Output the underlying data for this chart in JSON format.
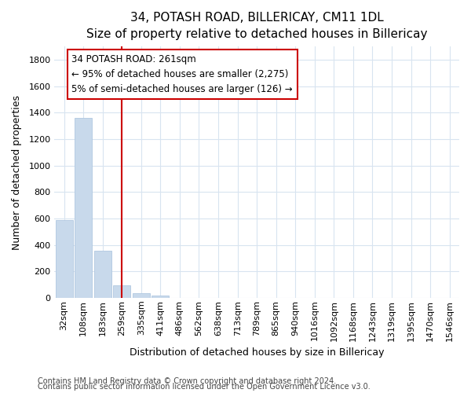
{
  "title": "34, POTASH ROAD, BILLERICAY, CM11 1DL",
  "subtitle": "Size of property relative to detached houses in Billericay",
  "xlabel": "Distribution of detached houses by size in Billericay",
  "ylabel": "Number of detached properties",
  "bar_color": "#c8d9eb",
  "bar_edge_color": "#b0c8e0",
  "vline_color": "#cc0000",
  "annotation_line1": "34 POTASH ROAD: 261sqm",
  "annotation_line2": "← 95% of detached houses are smaller (2,275)",
  "annotation_line3": "5% of semi-detached houses are larger (126) →",
  "annotation_box_color": "#ffffff",
  "annotation_box_edge": "#cc0000",
  "categories": [
    "32sqm",
    "108sqm",
    "183sqm",
    "259sqm",
    "335sqm",
    "411sqm",
    "486sqm",
    "562sqm",
    "638sqm",
    "713sqm",
    "789sqm",
    "865sqm",
    "940sqm",
    "1016sqm",
    "1092sqm",
    "1168sqm",
    "1243sqm",
    "1319sqm",
    "1395sqm",
    "1470sqm",
    "1546sqm"
  ],
  "values": [
    590,
    1360,
    355,
    95,
    35,
    18,
    0,
    0,
    0,
    0,
    0,
    0,
    0,
    0,
    0,
    0,
    0,
    0,
    0,
    0,
    0
  ],
  "ylim_max": 1900,
  "yticks": [
    0,
    200,
    400,
    600,
    800,
    1000,
    1200,
    1400,
    1600,
    1800
  ],
  "bg_color": "#ffffff",
  "grid_color": "#d8e4f0",
  "footer1": "Contains HM Land Registry data © Crown copyright and database right 2024.",
  "footer2": "Contains public sector information licensed under the Open Government Licence v3.0.",
  "title_fontsize": 11,
  "subtitle_fontsize": 10,
  "ylabel_fontsize": 9,
  "xlabel_fontsize": 9,
  "tick_fontsize": 8,
  "footer_fontsize": 7
}
